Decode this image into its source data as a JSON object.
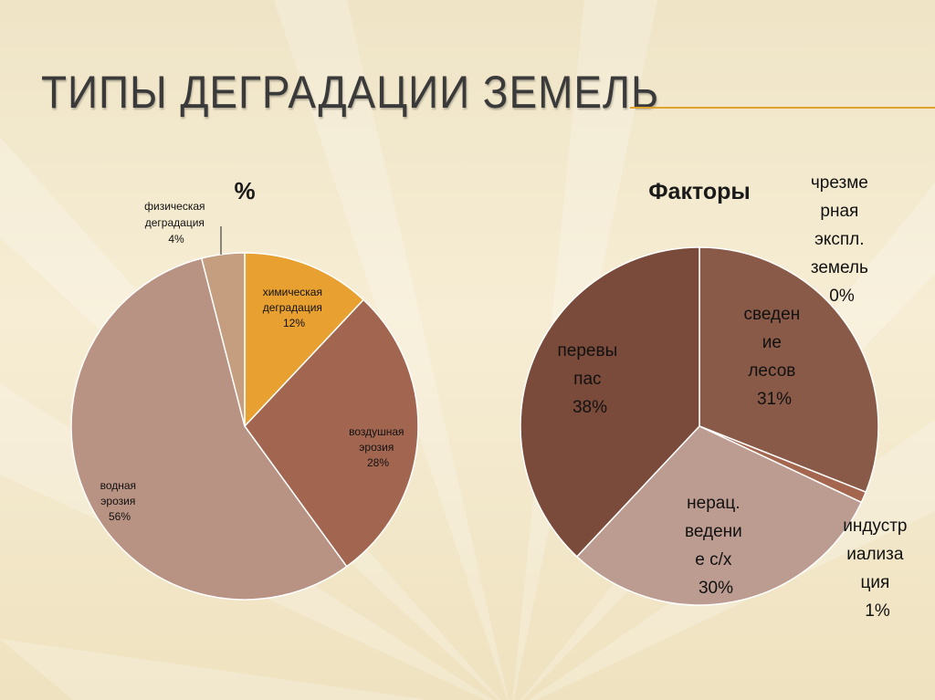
{
  "slide": {
    "title": "ТИПЫ ДЕГРАДАЦИИ ЗЕМЕЛЬ"
  },
  "colors": {
    "accent_rule": "#e0a32e",
    "chart1": [
      "#e8a030",
      "#a26650",
      "#b89282",
      "#c49e7e"
    ],
    "chart2": [
      "#7a4a3a",
      "#8a5a48",
      "#a5664f",
      "#bc9c90"
    ]
  },
  "chart_data": [
    {
      "type": "pie",
      "title": "%",
      "start_angle_deg": 0,
      "direction": "clockwise",
      "slices": [
        {
          "label_lines": [
            "химическая",
            "деградация",
            "12%"
          ],
          "value": 12
        },
        {
          "label_lines": [
            "воздушная",
            "эрозия",
            "28%"
          ],
          "value": 28
        },
        {
          "label_lines": [
            "водная",
            "эрозия",
            "56%"
          ],
          "value": 56
        },
        {
          "label_lines": [
            "физическая",
            "деградация",
            "4%"
          ],
          "value": 4
        }
      ]
    },
    {
      "type": "pie",
      "title": "Факторы",
      "start_angle_deg": 0,
      "direction": "clockwise",
      "slices": [
        {
          "label_lines": [
            "чрезме",
            "рная",
            "экспл.",
            "земель",
            "0%"
          ],
          "value": 0
        },
        {
          "label_lines": [
            "сведен",
            "ие",
            "лесов",
            "31%"
          ],
          "value": 31
        },
        {
          "label_lines": [
            "индустр",
            "иализа",
            "ция",
            "1%"
          ],
          "value": 1
        },
        {
          "label_lines": [
            "нерац.",
            "ведени",
            "е с/х",
            "30%"
          ],
          "value": 30
        },
        {
          "label_lines": [
            "перевы",
            "пас",
            "38%"
          ],
          "value": 38
        }
      ]
    }
  ]
}
